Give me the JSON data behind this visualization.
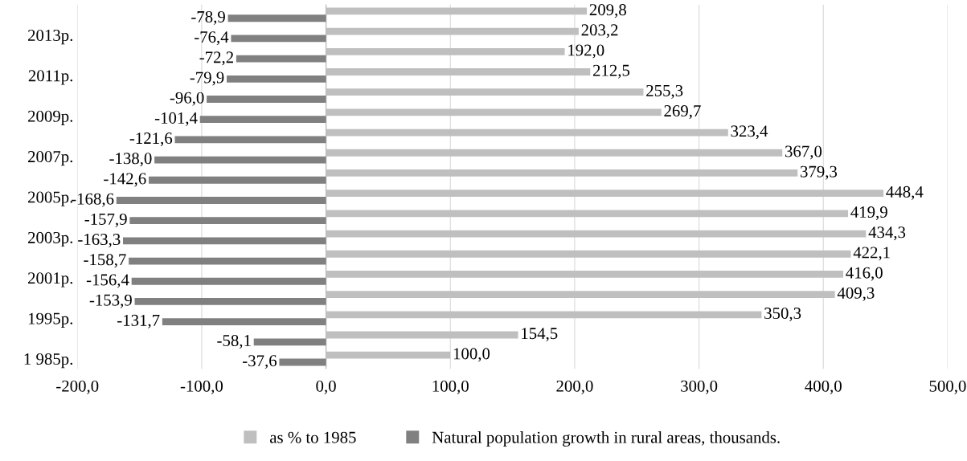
{
  "chart_data": {
    "type": "bar",
    "orientation": "horizontal",
    "categories": [
      null,
      "2013р.",
      null,
      "2011р.",
      null,
      "2009р.",
      null,
      "2007р.",
      null,
      "2005р.",
      null,
      "2003р.",
      null,
      "2001р.",
      null,
      "1995р.",
      null,
      "1 985р."
    ],
    "series": [
      {
        "name": "as % to 1985",
        "color": "#bfbfbf",
        "values": [
          209.8,
          203.2,
          192.0,
          212.5,
          255.3,
          269.7,
          323.4,
          367.0,
          379.3,
          448.4,
          419.9,
          434.3,
          422.1,
          416.0,
          409.3,
          350.3,
          154.5,
          100.0
        ],
        "value_labels": [
          "209,8",
          "203,2",
          "192,0",
          "212,5",
          "255,3",
          "269,7",
          "323,4",
          "367,0",
          "379,3",
          "448,4",
          "419,9",
          "434,3",
          "422,1",
          "416,0",
          "409,3",
          "350,3",
          "154,5",
          "100,0"
        ]
      },
      {
        "name": "Natural population growth in rural areas, thousands.",
        "color": "#808080",
        "values": [
          -78.9,
          -76.4,
          -72.2,
          -79.9,
          -96.0,
          -101.4,
          -121.6,
          -138.0,
          -142.6,
          -168.6,
          -157.9,
          -163.3,
          -158.7,
          -156.4,
          -153.9,
          -131.7,
          -58.1,
          -37.6
        ],
        "value_labels": [
          "-78,9",
          "-76,4",
          "-72,2",
          "-79,9",
          "-96,0",
          "-101,4",
          "-121,6",
          "-138,0",
          "-142,6",
          "-168,6",
          "-157,9",
          "-163,3",
          "-158,7",
          "-156,4",
          "-153,9",
          "-131,7",
          "-58,1",
          "-37,6"
        ]
      }
    ],
    "xlim": [
      -200,
      500
    ],
    "xticks": [
      {
        "value": -200,
        "label": "-200,0"
      },
      {
        "value": -100,
        "label": "-100,0"
      },
      {
        "value": 0,
        "label": "0,0"
      },
      {
        "value": 100,
        "label": "100,0"
      },
      {
        "value": 200,
        "label": "200,0"
      },
      {
        "value": 300,
        "label": "300,0"
      },
      {
        "value": 400,
        "label": "400,0"
      },
      {
        "value": 500,
        "label": "500,0"
      }
    ],
    "grid": "x",
    "legend": "bottom"
  }
}
